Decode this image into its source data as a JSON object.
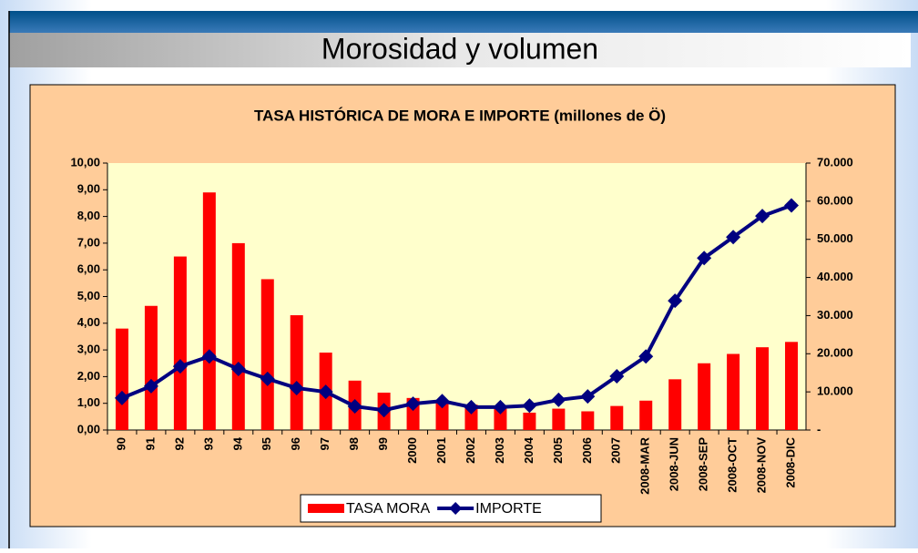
{
  "slide": {
    "title": "Morosidad y volumen"
  },
  "chart_data": {
    "type": "bar-line",
    "title": "TASA HISTÓRICA DE MORA E IMPORTE  (millones de Ö)",
    "categories": [
      "90",
      "91",
      "92",
      "93",
      "94",
      "95",
      "96",
      "97",
      "98",
      "99",
      "2000",
      "2001",
      "2002",
      "2003",
      "2004",
      "2005",
      "2006",
      "2007",
      "2008-MAR",
      "2008-JUN",
      "2008-SEP",
      "2008-OCT",
      "2008-NOV",
      "2008-DIC"
    ],
    "series": [
      {
        "name": "TASA MORA",
        "type": "bar",
        "color": "#ff0000",
        "axis": "y",
        "values": [
          3.8,
          4.65,
          6.5,
          8.9,
          7.0,
          5.65,
          4.3,
          2.9,
          1.85,
          1.4,
          1.2,
          1.1,
          0.95,
          0.85,
          0.65,
          0.8,
          0.7,
          0.9,
          1.1,
          1.9,
          2.5,
          2.85,
          3.1,
          3.3
        ]
      },
      {
        "name": "IMPORTE",
        "type": "line",
        "color": "#000080",
        "axis": "y2",
        "values": [
          8400,
          11500,
          16700,
          19300,
          16000,
          13400,
          11000,
          10000,
          6200,
          5200,
          6900,
          7600,
          6000,
          6000,
          6400,
          7900,
          8800,
          14100,
          19300,
          33900,
          45100,
          50600,
          56100,
          58900
        ]
      }
    ],
    "ylim": [
      0,
      10
    ],
    "yticks": [
      {
        "value": 0,
        "label": "0,00"
      },
      {
        "value": 1,
        "label": "1,00"
      },
      {
        "value": 2,
        "label": "2,00"
      },
      {
        "value": 3,
        "label": "3,00"
      },
      {
        "value": 4,
        "label": "4,00"
      },
      {
        "value": 5,
        "label": "5,00"
      },
      {
        "value": 6,
        "label": "6,00"
      },
      {
        "value": 7,
        "label": "7,00"
      },
      {
        "value": 8,
        "label": "8,00"
      },
      {
        "value": 9,
        "label": "9,00"
      },
      {
        "value": 10,
        "label": "10,00"
      }
    ],
    "y2lim": [
      0,
      70000
    ],
    "y2ticks": [
      {
        "value": 0,
        "label": "-"
      },
      {
        "value": 10000,
        "label": "10.000"
      },
      {
        "value": 20000,
        "label": "20.000"
      },
      {
        "value": 30000,
        "label": "30.000"
      },
      {
        "value": 40000,
        "label": "40.000"
      },
      {
        "value": 50000,
        "label": "50.000"
      },
      {
        "value": 60000,
        "label": "60.000"
      },
      {
        "value": 70000,
        "label": "70.000"
      }
    ],
    "legend": "bottom"
  }
}
